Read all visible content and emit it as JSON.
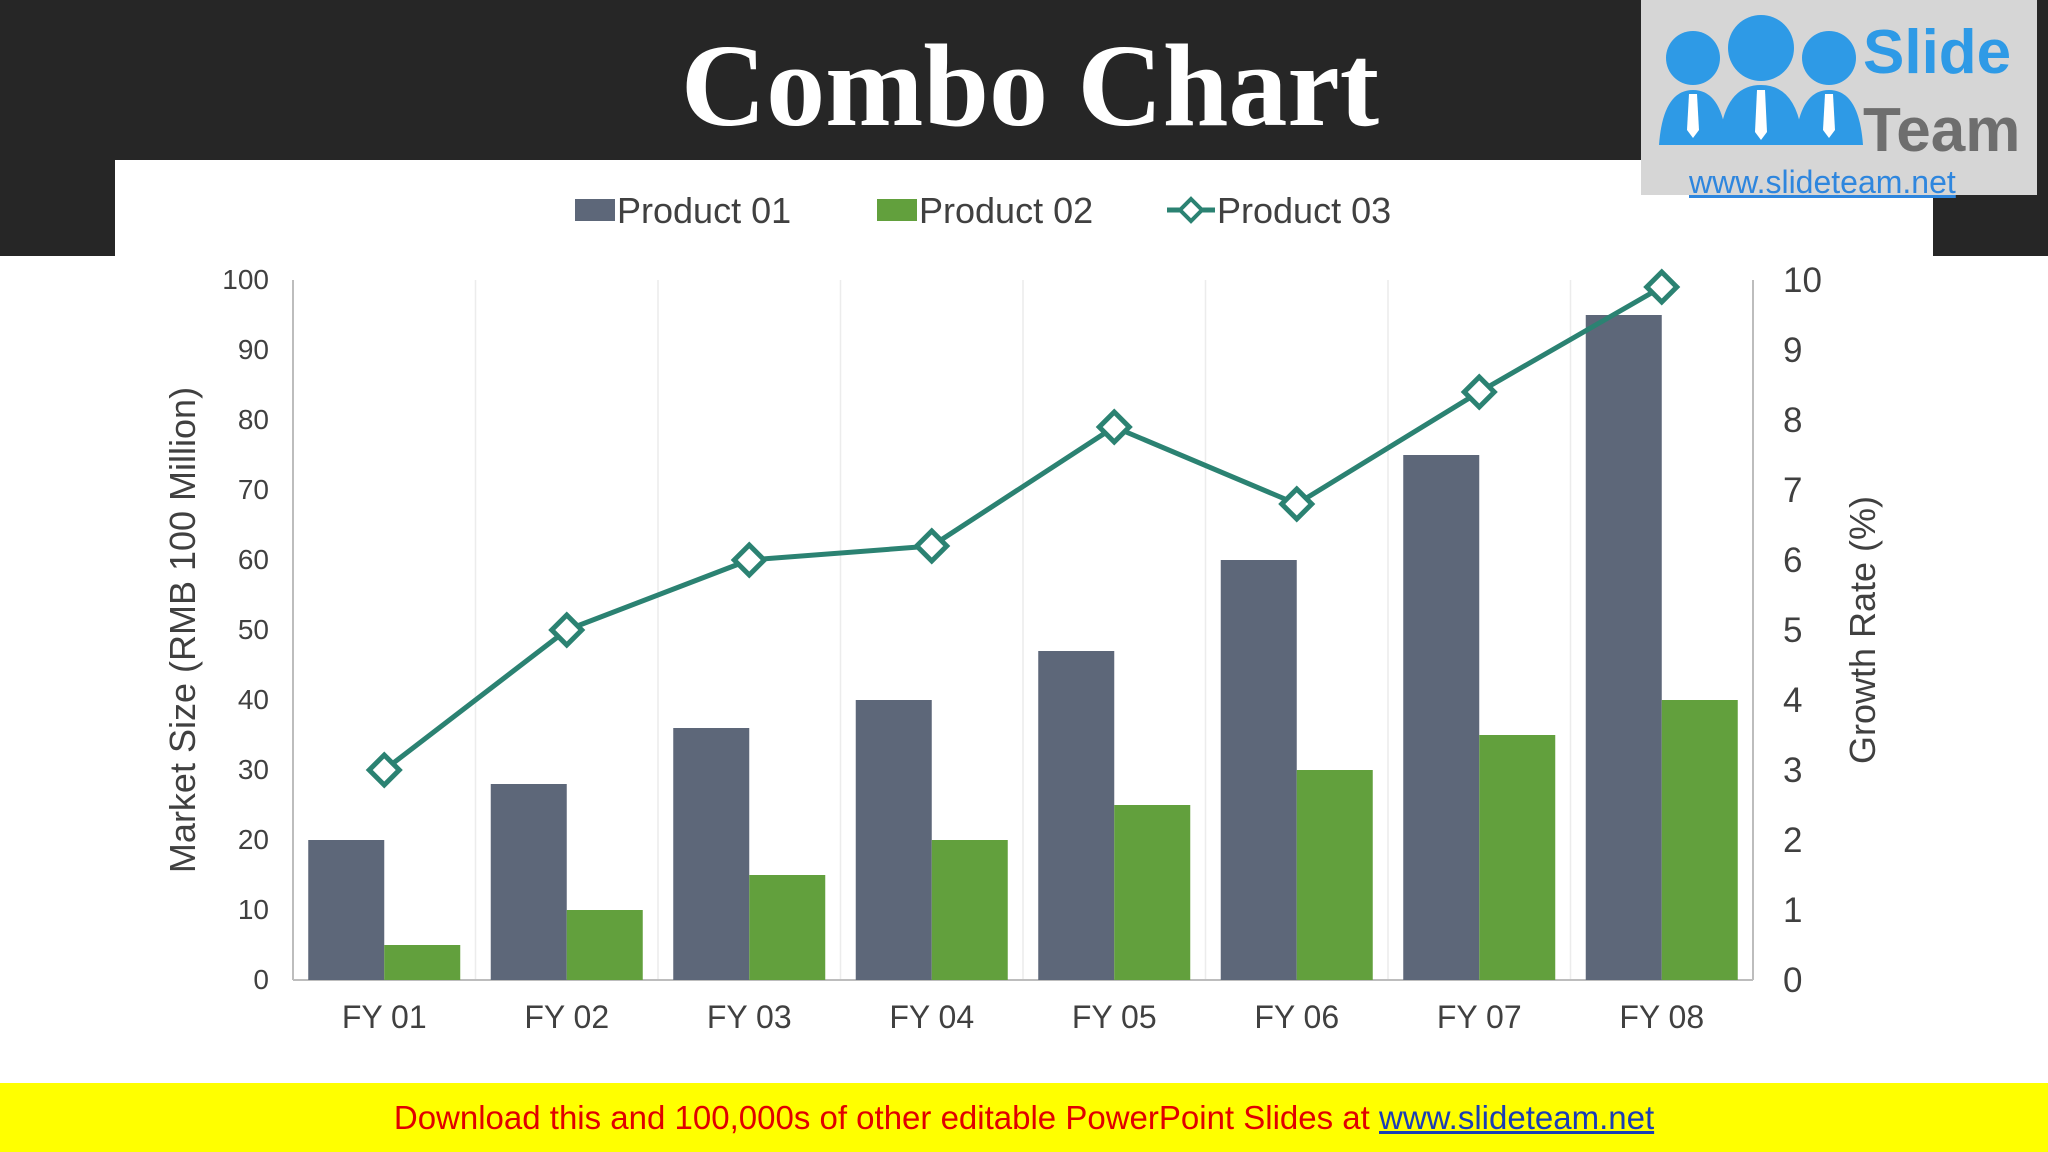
{
  "page": {
    "title": "Combo Chart",
    "banner_text": "Download this and 100,000s of other editable PowerPoint Slides at ",
    "banner_link": "www.slideteam.net"
  },
  "logo": {
    "word1": "Slide",
    "word2": "Team",
    "url": "www.slideteam.net"
  },
  "chart_data": {
    "type": "bar",
    "categories": [
      "FY 01",
      "FY 02",
      "FY 03",
      "FY 04",
      "FY 05",
      "FY 06",
      "FY 07",
      "FY 08"
    ],
    "series": [
      {
        "name": "Product 01",
        "type": "bar",
        "axis": "left",
        "values": [
          20,
          28,
          36,
          40,
          47,
          60,
          75,
          95
        ],
        "color": "#5d6779"
      },
      {
        "name": "Product 02",
        "type": "bar",
        "axis": "left",
        "values": [
          5,
          10,
          15,
          20,
          25,
          30,
          35,
          40
        ],
        "color": "#62a03d"
      },
      {
        "name": "Product 03",
        "type": "line",
        "axis": "right",
        "marker": "diamond",
        "values": [
          3,
          5,
          6,
          6.2,
          7.9,
          6.8,
          8.4,
          9.9
        ],
        "color": "#2b8272"
      }
    ],
    "ylabel": "Market Size (RMB 100 Million)",
    "y2label": "Growth Rate (%)",
    "xlabel": "",
    "ylim": [
      0,
      100
    ],
    "yticks": [
      "0",
      "10",
      "20",
      "30",
      "40",
      "50",
      "60",
      "70",
      "80",
      "90",
      "100"
    ],
    "y2lim": [
      0,
      10
    ],
    "y2ticks": [
      "0",
      "1",
      "2",
      "3",
      "4",
      "5",
      "6",
      "7",
      "8",
      "9",
      "10"
    ],
    "legend_position": "top",
    "grid": "vertical"
  }
}
